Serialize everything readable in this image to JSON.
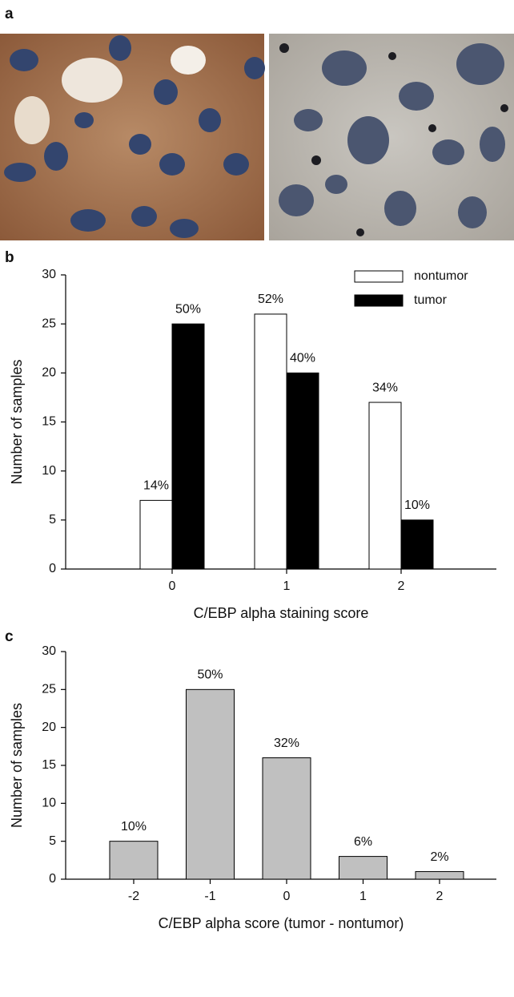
{
  "panel_labels": [
    "a",
    "b",
    "c"
  ],
  "chart_data": [
    {
      "type": "bar",
      "categories": [
        "0",
        "1",
        "2"
      ],
      "series": [
        {
          "name": "nontumor",
          "color": "#ffffff",
          "values": [
            7,
            26,
            17
          ],
          "annotations": [
            "14%",
            "52%",
            "34%"
          ]
        },
        {
          "name": "tumor",
          "color": "#000000",
          "values": [
            25,
            20,
            5
          ],
          "annotations": [
            "50%",
            "40%",
            "10%"
          ]
        }
      ],
      "ylim": [
        0,
        30
      ],
      "yticks": [
        0,
        5,
        10,
        15,
        20,
        25,
        30
      ],
      "y_label": "Number of samples",
      "x_label": "C/EBP alpha staining score",
      "legend": "top-right"
    },
    {
      "type": "bar",
      "categories": [
        "-2",
        "-1",
        "0",
        "1",
        "2"
      ],
      "series": [
        {
          "color": "#c0c0c0",
          "values": [
            5,
            25,
            16,
            3,
            1
          ],
          "annotations": [
            "10%",
            "50%",
            "32%",
            "6%",
            "2%"
          ]
        }
      ],
      "ylim": [
        0,
        30
      ],
      "yticks": [
        0,
        5,
        10,
        15,
        20,
        25,
        30
      ],
      "y_label": "Number of samples",
      "x_label": "C/EBP alpha score (tumor - nontumor)"
    }
  ]
}
